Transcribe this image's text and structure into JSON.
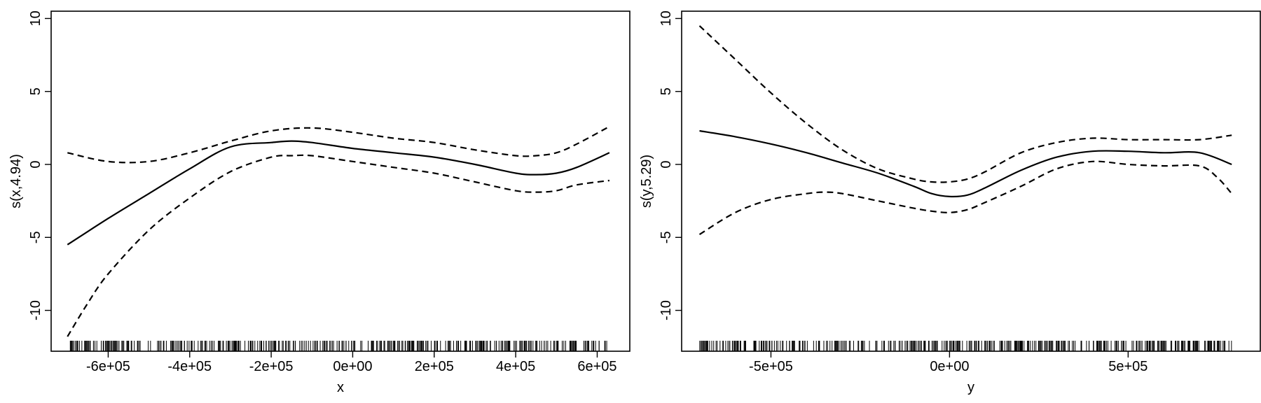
{
  "chart_data": [
    {
      "type": "line",
      "xlabel": "x",
      "ylabel": "s(x,4.94)",
      "xlim": [
        -740000,
        680000
      ],
      "ylim": [
        -12.8,
        10.5
      ],
      "x_ticks": [
        -600000,
        -400000,
        -200000,
        0,
        200000,
        400000,
        600000
      ],
      "x_tick_labels": [
        "-6e+05",
        "-4e+05",
        "-2e+05",
        "0e+00",
        "2e+05",
        "4e+05",
        "6e+05"
      ],
      "y_ticks": [
        -10,
        -5,
        0,
        5,
        10
      ],
      "y_tick_labels": [
        "-10",
        "-5",
        "0",
        "5",
        "10"
      ],
      "grid": false,
      "rug": true,
      "series": [
        {
          "style": "solid",
          "x": [
            -700000,
            -600000,
            -500000,
            -400000,
            -300000,
            -200000,
            -150000,
            -100000,
            0,
            100000,
            200000,
            300000,
            400000,
            450000,
            500000,
            550000,
            630000
          ],
          "y": [
            -5.5,
            -3.7,
            -2.0,
            -0.3,
            1.2,
            1.5,
            1.6,
            1.5,
            1.1,
            0.8,
            0.5,
            0.0,
            -0.6,
            -0.7,
            -0.6,
            -0.2,
            0.8
          ]
        },
        {
          "style": "dashed",
          "x": [
            -700000,
            -600000,
            -500000,
            -400000,
            -300000,
            -200000,
            -100000,
            0,
            100000,
            200000,
            300000,
            400000,
            450000,
            500000,
            550000,
            630000
          ],
          "y": [
            0.8,
            0.2,
            0.2,
            0.8,
            1.6,
            2.3,
            2.5,
            2.2,
            1.8,
            1.5,
            1.0,
            0.6,
            0.6,
            0.8,
            1.4,
            2.6
          ]
        },
        {
          "style": "dashed",
          "x": [
            -700000,
            -650000,
            -600000,
            -500000,
            -400000,
            -300000,
            -200000,
            -150000,
            -100000,
            0,
            100000,
            200000,
            300000,
            400000,
            450000,
            500000,
            550000,
            630000
          ],
          "y": [
            -11.8,
            -9.5,
            -7.5,
            -4.5,
            -2.3,
            -0.5,
            0.5,
            0.6,
            0.6,
            0.2,
            -0.2,
            -0.6,
            -1.2,
            -1.8,
            -1.9,
            -1.8,
            -1.4,
            -1.1
          ]
        }
      ]
    },
    {
      "type": "line",
      "xlabel": "y",
      "ylabel": "s(y,5.29)",
      "xlim": [
        -750000,
        870000
      ],
      "ylim": [
        -12.8,
        10.5
      ],
      "x_ticks": [
        -500000,
        0,
        500000
      ],
      "x_tick_labels": [
        "-5e+05",
        "0e+00",
        "5e+05"
      ],
      "y_ticks": [
        -10,
        -5,
        0,
        5,
        10
      ],
      "y_tick_labels": [
        "-10",
        "-5",
        "0",
        "5",
        "10"
      ],
      "grid": false,
      "rug": true,
      "series": [
        {
          "style": "solid",
          "x": [
            -700000,
            -600000,
            -500000,
            -400000,
            -300000,
            -200000,
            -100000,
            -50000,
            0,
            50000,
            100000,
            200000,
            300000,
            400000,
            500000,
            600000,
            700000,
            790000
          ],
          "y": [
            2.3,
            1.9,
            1.4,
            0.8,
            0.1,
            -0.6,
            -1.5,
            -2.0,
            -2.2,
            -2.1,
            -1.6,
            -0.4,
            0.5,
            0.9,
            0.9,
            0.8,
            0.8,
            0.0
          ]
        },
        {
          "style": "dashed",
          "x": [
            -700000,
            -600000,
            -500000,
            -400000,
            -300000,
            -200000,
            -100000,
            -50000,
            0,
            50000,
            100000,
            200000,
            300000,
            400000,
            500000,
            600000,
            700000,
            790000
          ],
          "y": [
            9.5,
            7.2,
            4.9,
            2.8,
            1.0,
            -0.3,
            -1.0,
            -1.2,
            -1.2,
            -1.0,
            -0.5,
            0.8,
            1.5,
            1.8,
            1.7,
            1.7,
            1.7,
            2.0
          ]
        },
        {
          "style": "dashed",
          "x": [
            -700000,
            -600000,
            -500000,
            -400000,
            -350000,
            -300000,
            -200000,
            -100000,
            -50000,
            0,
            50000,
            100000,
            200000,
            300000,
            400000,
            500000,
            600000,
            700000,
            750000,
            790000
          ],
          "y": [
            -4.8,
            -3.3,
            -2.4,
            -2.0,
            -1.9,
            -2.0,
            -2.5,
            -3.0,
            -3.2,
            -3.3,
            -3.1,
            -2.6,
            -1.5,
            -0.3,
            0.2,
            0.0,
            -0.1,
            -0.1,
            -0.9,
            -2.0
          ]
        }
      ]
    }
  ]
}
